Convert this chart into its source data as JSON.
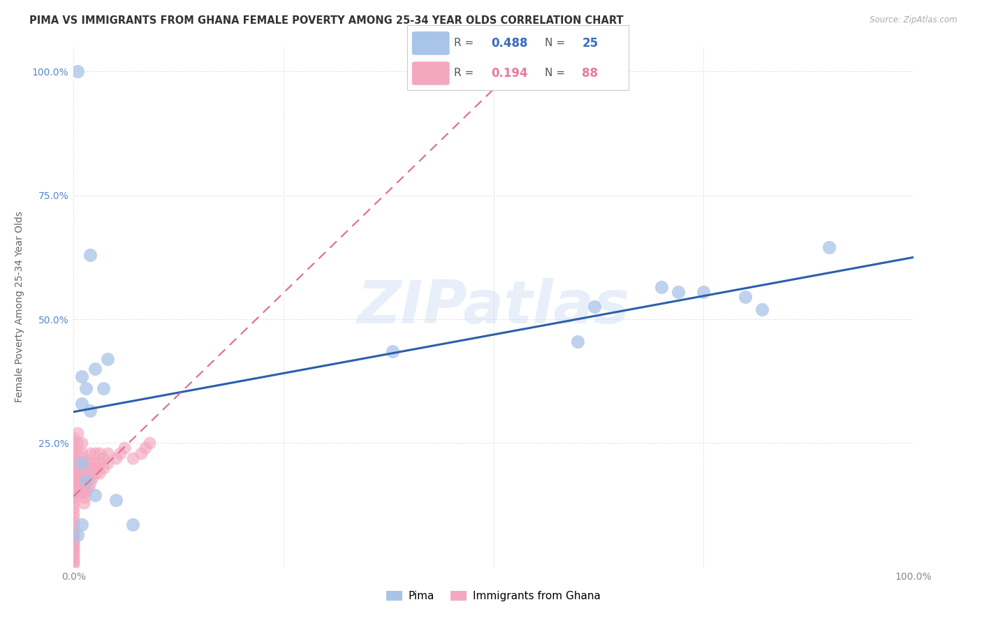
{
  "title": "PIMA VS IMMIGRANTS FROM GHANA FEMALE POVERTY AMONG 25-34 YEAR OLDS CORRELATION CHART",
  "source": "Source: ZipAtlas.com",
  "ylabel": "Female Poverty Among 25-34 Year Olds",
  "watermark": "ZIPatlas",
  "xlim": [
    0.0,
    1.0
  ],
  "ylim": [
    0.0,
    1.05
  ],
  "xtick_vals": [
    0.0,
    0.25,
    0.5,
    0.75,
    1.0
  ],
  "ytick_vals": [
    0.0,
    0.25,
    0.5,
    0.75,
    1.0
  ],
  "xticklabels": [
    "0.0%",
    "",
    "",
    "",
    "100.0%"
  ],
  "yticklabels": [
    "",
    "25.0%",
    "50.0%",
    "75.0%",
    "100.0%"
  ],
  "pima_color": "#a8c4e8",
  "ghana_color": "#f4a8bf",
  "pima_trend_color": "#2b5fac",
  "ghana_trend_color": "#e07090",
  "pima_x": [
    0.005,
    0.02,
    0.015,
    0.01,
    0.04,
    0.01,
    0.025,
    0.035,
    0.02,
    0.38,
    0.62,
    0.7,
    0.8,
    0.75,
    0.82,
    0.9,
    0.6,
    0.72,
    0.05,
    0.07,
    0.01,
    0.015,
    0.025,
    0.01,
    0.005
  ],
  "pima_y": [
    1.0,
    0.63,
    0.36,
    0.385,
    0.42,
    0.33,
    0.4,
    0.36,
    0.315,
    0.435,
    0.525,
    0.565,
    0.545,
    0.555,
    0.52,
    0.645,
    0.455,
    0.555,
    0.135,
    0.085,
    0.21,
    0.175,
    0.145,
    0.085,
    0.065
  ],
  "ghana_x": [
    0.0,
    0.0,
    0.0,
    0.0,
    0.0,
    0.0,
    0.0,
    0.0,
    0.0,
    0.0,
    0.0,
    0.0,
    0.0,
    0.0,
    0.0,
    0.0,
    0.0,
    0.0,
    0.0,
    0.0,
    0.0,
    0.0,
    0.0,
    0.0,
    0.0,
    0.0,
    0.0,
    0.0,
    0.0,
    0.0,
    0.0,
    0.0,
    0.0,
    0.0,
    0.0,
    0.005,
    0.005,
    0.005,
    0.005,
    0.005,
    0.007,
    0.007,
    0.007,
    0.008,
    0.008,
    0.009,
    0.009,
    0.01,
    0.01,
    0.01,
    0.01,
    0.01,
    0.01,
    0.012,
    0.012,
    0.012,
    0.013,
    0.013,
    0.015,
    0.015,
    0.015,
    0.015,
    0.018,
    0.018,
    0.02,
    0.02,
    0.02,
    0.02,
    0.022,
    0.022,
    0.025,
    0.025,
    0.025,
    0.028,
    0.03,
    0.03,
    0.03,
    0.035,
    0.035,
    0.04,
    0.04,
    0.05,
    0.055,
    0.06,
    0.07,
    0.08,
    0.085,
    0.09
  ],
  "ghana_y": [
    0.14,
    0.13,
    0.12,
    0.11,
    0.1,
    0.09,
    0.08,
    0.07,
    0.065,
    0.06,
    0.055,
    0.05,
    0.045,
    0.04,
    0.035,
    0.03,
    0.025,
    0.02,
    0.015,
    0.01,
    0.005,
    0.17,
    0.16,
    0.155,
    0.15,
    0.145,
    0.18,
    0.19,
    0.2,
    0.21,
    0.22,
    0.23,
    0.24,
    0.25,
    0.26,
    0.27,
    0.25,
    0.23,
    0.21,
    0.19,
    0.2,
    0.18,
    0.16,
    0.19,
    0.17,
    0.18,
    0.16,
    0.15,
    0.17,
    0.19,
    0.21,
    0.23,
    0.25,
    0.13,
    0.15,
    0.17,
    0.14,
    0.16,
    0.155,
    0.175,
    0.195,
    0.215,
    0.16,
    0.18,
    0.17,
    0.19,
    0.21,
    0.23,
    0.18,
    0.2,
    0.19,
    0.21,
    0.23,
    0.2,
    0.19,
    0.21,
    0.23,
    0.2,
    0.22,
    0.21,
    0.23,
    0.22,
    0.23,
    0.24,
    0.22,
    0.23,
    0.24,
    0.25
  ],
  "background_color": "#ffffff",
  "grid_color": "#e0e0e0",
  "title_fontsize": 10.5,
  "axis_fontsize": 10,
  "tick_fontsize": 10,
  "legend_R_pima": "0.488",
  "legend_N_pima": "25",
  "legend_R_ghana": "0.194",
  "legend_N_ghana": "88",
  "legend_color_pima": "#3a6bbf",
  "legend_color_ghana": "#e87a9a"
}
